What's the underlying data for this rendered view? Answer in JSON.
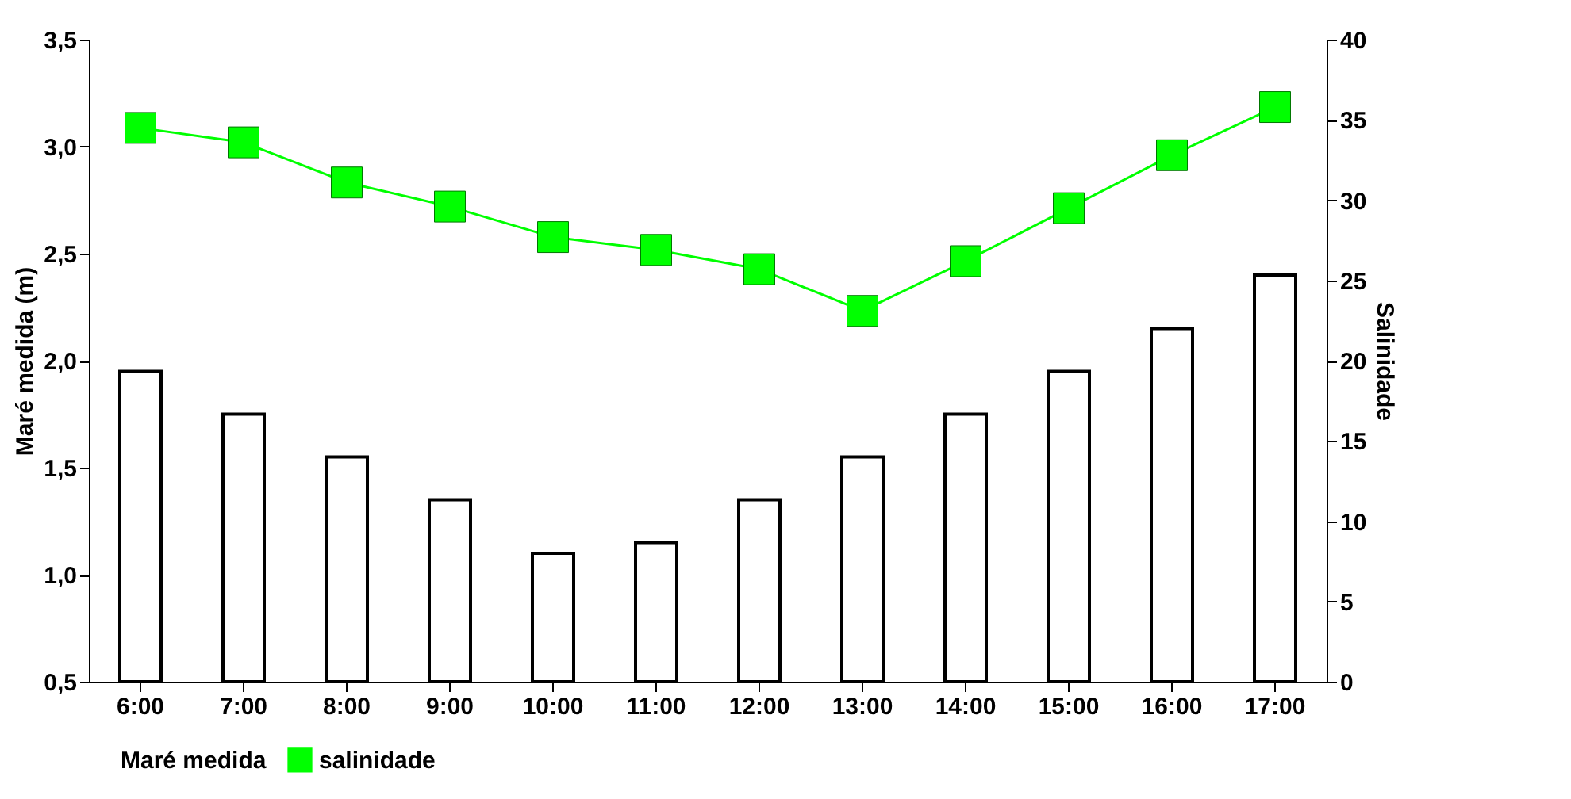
{
  "chart_data": {
    "type": "bar",
    "categories": [
      "6:00",
      "7:00",
      "8:00",
      "9:00",
      "10:00",
      "11:00",
      "12:00",
      "13:00",
      "14:00",
      "15:00",
      "16:00",
      "17:00"
    ],
    "ylabel": "Maré medida (m)",
    "y2label": "Salinidade",
    "series": [
      {
        "name": "Maré medida",
        "color": "#ffffff",
        "values": [
          1.95,
          1.75,
          1.55,
          1.35,
          1.1,
          1.15,
          1.35,
          1.55,
          1.75,
          1.95,
          2.15,
          2.4
        ]
      },
      {
        "name": "salinidade",
        "type": "line",
        "axis": "y2",
        "color": "#00ff00",
        "values": [
          34.5,
          33.6,
          31.1,
          29.6,
          27.7,
          26.9,
          25.7,
          23.1,
          26.2,
          29.5,
          32.8,
          35.8
        ]
      }
    ],
    "ylim": [
      0.5,
      3.5
    ],
    "yticks": [
      {
        "value": 0.5,
        "label": "0,5"
      },
      {
        "value": 1,
        "label": "1,0"
      },
      {
        "value": 1.5,
        "label": "1,5"
      },
      {
        "value": 2,
        "label": "2,0"
      },
      {
        "value": 2.5,
        "label": "2,5"
      },
      {
        "value": 3,
        "label": "3,0"
      },
      {
        "value": 3.5,
        "label": "3,5"
      }
    ],
    "y2lim": [
      0,
      40
    ],
    "y2ticks": [
      0,
      5,
      10,
      15,
      20,
      25,
      30,
      35,
      40
    ],
    "legend": "bottom",
    "marker": "square",
    "line_style": "solid",
    "grid": false
  }
}
